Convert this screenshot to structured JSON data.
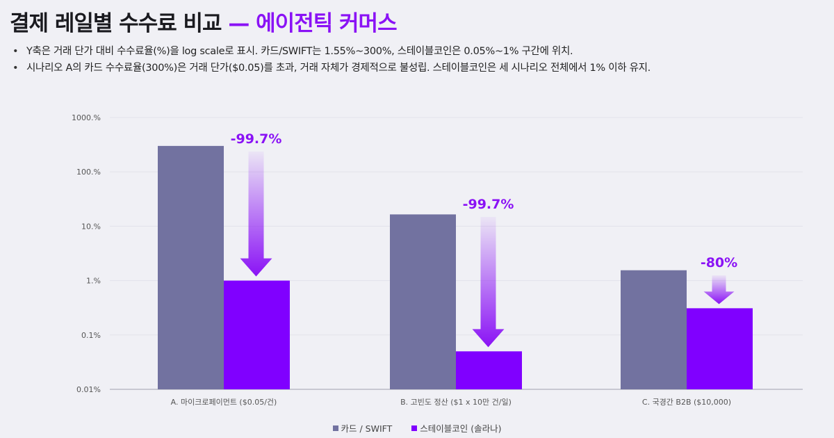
{
  "title": {
    "main": "결제 레일별 수수료 비교",
    "accent": "— 에이전틱 커머스"
  },
  "bullets": [
    "Y축은 거래 단가 대비 수수료율(%)을 log scale로 표시. 카드/SWIFT는 1.55%~300%, 스테이블코인은 0.05%~1% 구간에 위치.",
    "시나리오 A의 카드 수수료율(300%)은 거래 단가($0.05)를 초과, 거래 자체가 경제적으로 불성립. 스테이블코인은 세 시나리오 전체에서 1% 이하 유지."
  ],
  "colors": {
    "card": "#7272a0",
    "stablecoin": "#8000ff",
    "accent": "#8a12f5",
    "grid": "#e2e2ea",
    "background": "#f0f0f5"
  },
  "chart_data": {
    "type": "bar",
    "title": "결제 레일별 수수료 비교 — 에이전틱 커머스",
    "xlabel": "",
    "ylabel": "",
    "yscale": "log",
    "ylim": [
      0.01,
      1000
    ],
    "yticks": [
      0.01,
      0.1,
      1,
      10,
      100,
      1000
    ],
    "ytick_labels": [
      "0.01%",
      "0.1%",
      "1.%",
      "10.%",
      "100.%",
      "1000.%"
    ],
    "grid": true,
    "legend_position": "bottom",
    "categories": [
      "A. 마이크로페이먼트 ($0.05/건)",
      "B. 고빈도 정산 ($1 x 10만 건/일)",
      "C. 국경간 B2B ($10,000)"
    ],
    "series": [
      {
        "name": "카드 / SWIFT",
        "values": [
          300,
          16.5,
          1.55
        ]
      },
      {
        "name": "스테이블코인 (솔라나)",
        "values": [
          1,
          0.05,
          0.31
        ]
      }
    ],
    "annotations": [
      "-99.7%",
      "-99.7%",
      "-80%"
    ]
  }
}
